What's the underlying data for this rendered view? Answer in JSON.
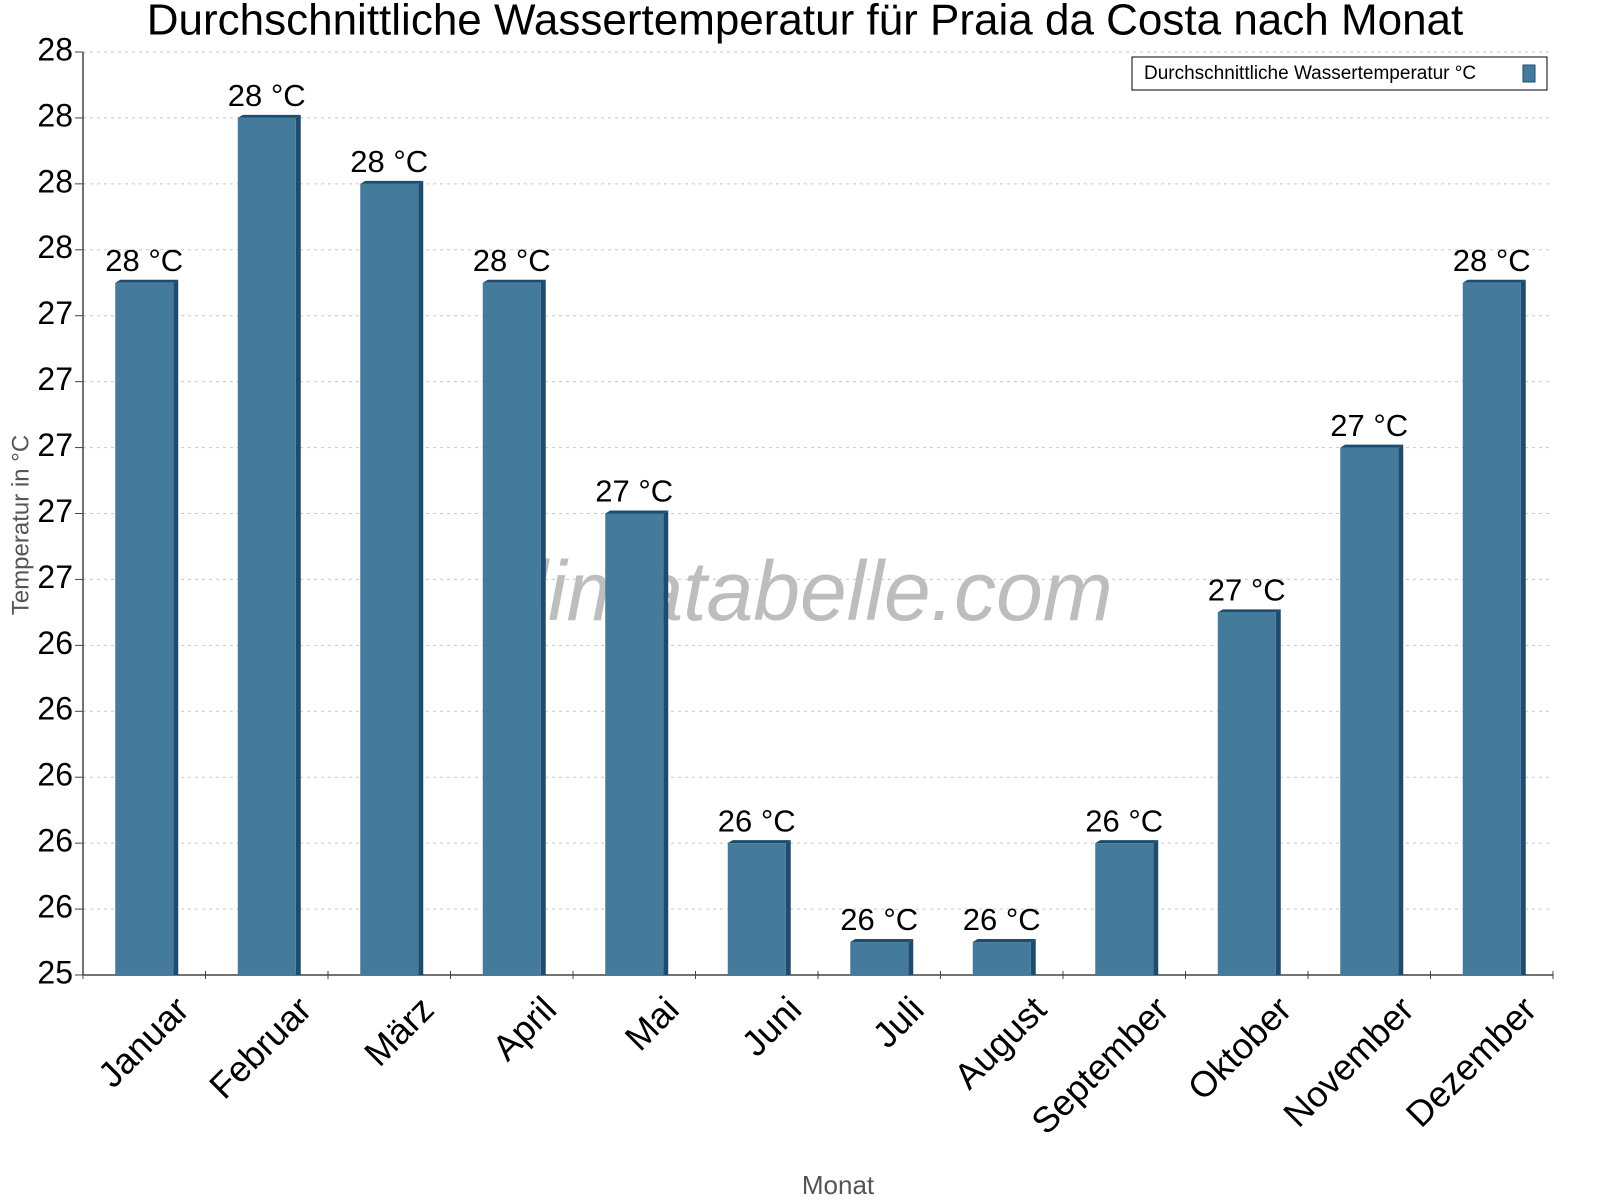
{
  "chart_data": {
    "type": "bar",
    "title": "Durchschnittliche Wassertemperatur für Praia da Costa nach Monat",
    "watermark": "klimatabelle.com",
    "x_label": "Monat",
    "y_label": "Temperatur in °C",
    "categories": [
      "Januar",
      "Februar",
      "März",
      "April",
      "Mai",
      "Juni",
      "Juli",
      "August",
      "September",
      "Oktober",
      "November",
      "Dezember"
    ],
    "series": [
      {
        "name": "Durchschnittliche Wassertemperatur °C",
        "color": "#447a9c",
        "values": [
          27.5,
          28.0,
          27.8,
          27.5,
          26.8,
          25.8,
          25.5,
          25.5,
          25.8,
          26.5,
          27.0,
          27.5
        ],
        "value_labels": [
          "28 °C",
          "28 °C",
          "28 °C",
          "28 °C",
          "27 °C",
          "26 °C",
          "26 °C",
          "26 °C",
          "26 °C",
          "27 °C",
          "27 °C",
          "28 °C"
        ]
      }
    ],
    "ylim": [
      25.4,
      28.2
    ],
    "yticks": [
      {
        "value": 25.4,
        "label": "25"
      },
      {
        "value": 25.6,
        "label": "26"
      },
      {
        "value": 25.8,
        "label": "26"
      },
      {
        "value": 26.0,
        "label": "26"
      },
      {
        "value": 26.2,
        "label": "26"
      },
      {
        "value": 26.4,
        "label": "26"
      },
      {
        "value": 26.6,
        "label": "27"
      },
      {
        "value": 26.8,
        "label": "27"
      },
      {
        "value": 27.0,
        "label": "27"
      },
      {
        "value": 27.2,
        "label": "27"
      },
      {
        "value": 27.4,
        "label": "27"
      },
      {
        "value": 27.6,
        "label": "28"
      },
      {
        "value": 27.8,
        "label": "28"
      },
      {
        "value": 28.0,
        "label": "28"
      },
      {
        "value": 28.2,
        "label": "28"
      }
    ],
    "grid": true,
    "legend": "top-right"
  }
}
